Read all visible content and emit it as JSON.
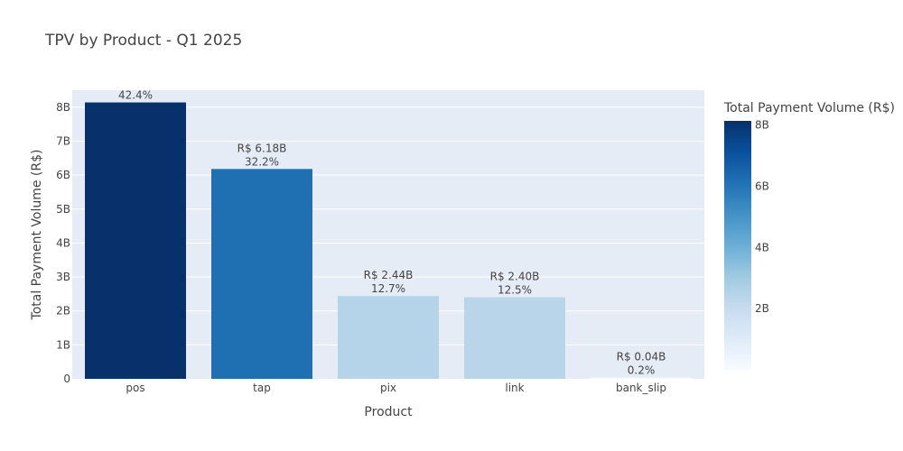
{
  "chart_data": {
    "type": "bar",
    "title": "TPV by Product - Q1 2025",
    "xlabel": "Product",
    "ylabel": "Total Payment Volume (R$)",
    "categories": [
      "pos",
      "tap",
      "pix",
      "link",
      "bank_slip"
    ],
    "values": [
      8.14,
      6.18,
      2.44,
      2.4,
      0.04
    ],
    "value_unit": "B",
    "labels": [
      {
        "value": "",
        "share": "42.4%"
      },
      {
        "value": "R$ 6.18B",
        "share": "32.2%"
      },
      {
        "value": "R$ 2.44B",
        "share": "12.7%"
      },
      {
        "value": "R$ 2.40B",
        "share": "12.5%"
      },
      {
        "value": "R$ 0.04B",
        "share": "0.2%"
      }
    ],
    "ylim": [
      0,
      8.5
    ],
    "yticks": [
      {
        "value": 0,
        "label": "0"
      },
      {
        "value": 1,
        "label": "1B"
      },
      {
        "value": 2,
        "label": "2B"
      },
      {
        "value": 3,
        "label": "3B"
      },
      {
        "value": 4,
        "label": "4B"
      },
      {
        "value": 5,
        "label": "5B"
      },
      {
        "value": 6,
        "label": "6B"
      },
      {
        "value": 7,
        "label": "7B"
      },
      {
        "value": 8,
        "label": "8B"
      }
    ],
    "grid": true,
    "colorbar": {
      "title": "Total Payment Volume (R$)",
      "range": [
        0,
        8.14
      ],
      "ticks": [
        {
          "value": 2,
          "label": "2B"
        },
        {
          "value": 4,
          "label": "4B"
        },
        {
          "value": 6,
          "label": "6B"
        },
        {
          "value": 8,
          "label": "8B"
        }
      ],
      "colorscale": [
        "#f7fbff",
        "#deebf7",
        "#c6dbef",
        "#9ecae1",
        "#6baed6",
        "#4292c6",
        "#2171b5",
        "#08519c",
        "#08306b"
      ]
    },
    "colors": {
      "plot_bg": "#e5ecf6",
      "grid": "#ffffff",
      "text": "#444444"
    }
  }
}
